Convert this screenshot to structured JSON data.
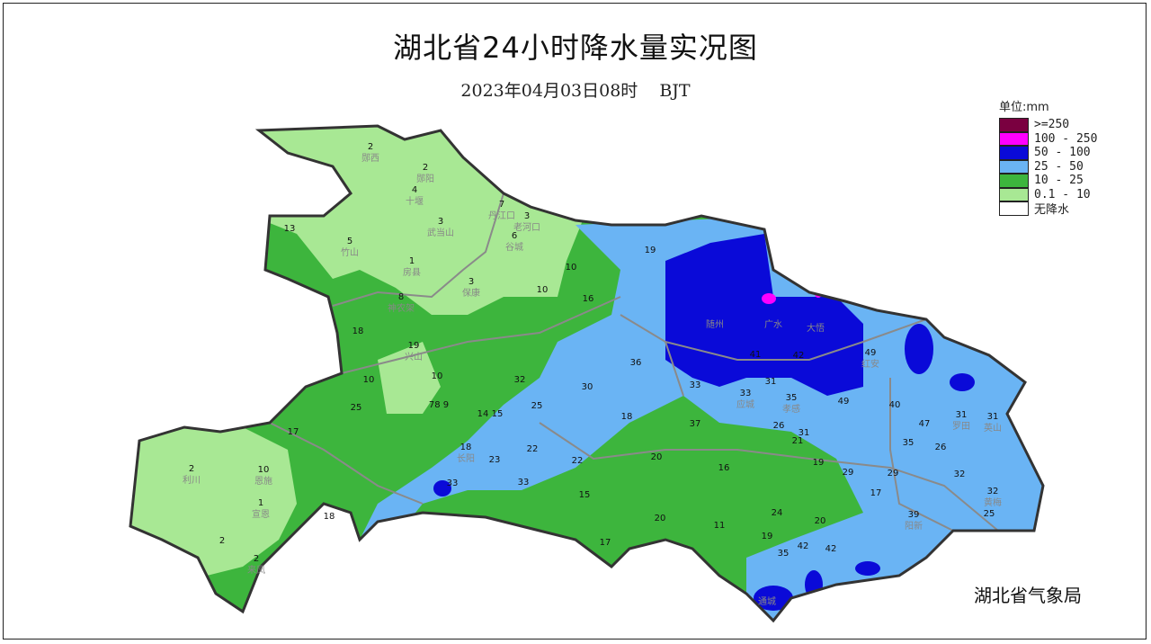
{
  "title": "湖北省24小时降水量实况图",
  "subtitle": {
    "datetime": "2023年04月03日08时",
    "timezone": "BJT"
  },
  "agency": "湖北省气象局",
  "legend": {
    "unit": "单位:mm",
    "items": [
      {
        "label": ">=250",
        "color": "#7a0040"
      },
      {
        "label": "100 - 250",
        "color": "#ff00ff"
      },
      {
        "label": "50 - 100",
        "color": "#0a0ad8"
      },
      {
        "label": "25 - 50",
        "color": "#6ab4f4"
      },
      {
        "label": "10 - 25",
        "color": "#3db53d"
      },
      {
        "label": "0.1 - 10",
        "color": "#a8e894"
      },
      {
        "label": "无降水",
        "color": "#ffffff"
      }
    ]
  },
  "stations": [
    {
      "value": "2",
      "name": "郧西"
    },
    {
      "value": "2",
      "name": "郧阳"
    },
    {
      "value": "4",
      "name": "十堰"
    },
    {
      "value": "3",
      "name": "武当山"
    },
    {
      "value": "7",
      "name": "丹江口"
    },
    {
      "value": "3",
      "name": "老河口"
    },
    {
      "value": "6",
      "name": "谷城"
    },
    {
      "value": "13",
      "name": ""
    },
    {
      "value": "5",
      "name": "竹山"
    },
    {
      "value": "1",
      "name": "房县"
    },
    {
      "value": "3",
      "name": "保康"
    },
    {
      "value": "10",
      "name": ""
    },
    {
      "value": "10",
      "name": ""
    },
    {
      "value": "16",
      "name": ""
    },
    {
      "value": "8",
      "name": "神农架"
    },
    {
      "value": "18",
      "name": ""
    },
    {
      "value": "19",
      "name": "兴山"
    },
    {
      "value": "10",
      "name": ""
    },
    {
      "value": "10",
      "name": ""
    },
    {
      "value": "25",
      "name": ""
    },
    {
      "value": "78 9",
      "name": ""
    },
    {
      "value": "14 15",
      "name": ""
    },
    {
      "value": "17",
      "name": ""
    },
    {
      "value": "2",
      "name": "利川"
    },
    {
      "value": "10",
      "name": "恩施"
    },
    {
      "value": "1",
      "name": "宣恩"
    },
    {
      "value": "2",
      "name": ""
    },
    {
      "value": "2",
      "name": "来凤"
    },
    {
      "value": "18",
      "name": ""
    },
    {
      "value": "18",
      "name": "长阳"
    },
    {
      "value": "23",
      "name": ""
    },
    {
      "value": "33",
      "name": ""
    },
    {
      "value": "22",
      "name": ""
    },
    {
      "value": "33",
      "name": ""
    },
    {
      "value": "32",
      "name": ""
    },
    {
      "value": "25",
      "name": ""
    },
    {
      "value": "36",
      "name": ""
    },
    {
      "value": "30",
      "name": ""
    },
    {
      "value": "18",
      "name": ""
    },
    {
      "value": "33",
      "name": ""
    },
    {
      "value": "37",
      "name": ""
    },
    {
      "value": "19",
      "name": ""
    },
    {
      "value": "",
      "name": "随州"
    },
    {
      "value": "",
      "name": "广水"
    },
    {
      "value": "",
      "name": "大悟"
    },
    {
      "value": "41",
      "name": ""
    },
    {
      "value": "42",
      "name": ""
    },
    {
      "value": "49",
      "name": "红安"
    },
    {
      "value": "31",
      "name": ""
    },
    {
      "value": "33",
      "name": "应城"
    },
    {
      "value": "35",
      "name": "孝感"
    },
    {
      "value": "49",
      "name": ""
    },
    {
      "value": "40",
      "name": ""
    },
    {
      "value": "47",
      "name": ""
    },
    {
      "value": "31",
      "name": "罗田"
    },
    {
      "value": "31",
      "name": "英山"
    },
    {
      "value": "26",
      "name": ""
    },
    {
      "value": "31",
      "name": ""
    },
    {
      "value": "21",
      "name": ""
    },
    {
      "value": "35",
      "name": ""
    },
    {
      "value": "26",
      "name": ""
    },
    {
      "value": "20",
      "name": ""
    },
    {
      "value": "22",
      "name": ""
    },
    {
      "value": "15",
      "name": ""
    },
    {
      "value": "16",
      "name": ""
    },
    {
      "value": "19",
      "name": ""
    },
    {
      "value": "29",
      "name": ""
    },
    {
      "value": "29",
      "name": ""
    },
    {
      "value": "17",
      "name": ""
    },
    {
      "value": "32",
      "name": ""
    },
    {
      "value": "32",
      "name": "黄梅"
    },
    {
      "value": "25",
      "name": ""
    },
    {
      "value": "39",
      "name": "阳新"
    },
    {
      "value": "20",
      "name": ""
    },
    {
      "value": "17",
      "name": ""
    },
    {
      "value": "11",
      "name": ""
    },
    {
      "value": "24",
      "name": ""
    },
    {
      "value": "19",
      "name": ""
    },
    {
      "value": "20",
      "name": ""
    },
    {
      "value": "35",
      "name": ""
    },
    {
      "value": "42",
      "name": ""
    },
    {
      "value": "42",
      "name": ""
    },
    {
      "value": "",
      "name": "通城"
    }
  ]
}
